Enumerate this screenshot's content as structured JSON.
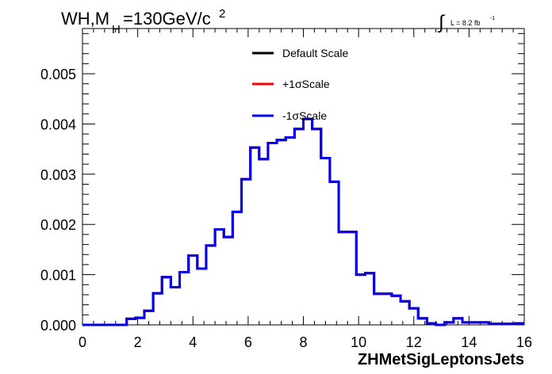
{
  "chart_data": {
    "type": "line",
    "drawstyle": "steps",
    "title_main": "WH,M",
    "title_sub": "H",
    "title_rest": "=130GeV/c",
    "title_sup": "2",
    "lumi_integral": "∫",
    "lumi_text": "L = 8.2 fb",
    "lumi_sup": "-1",
    "xlabel": "ZHMetSigLeptonsJets",
    "ylabel": "",
    "xlim": [
      0,
      16
    ],
    "ylim": [
      0,
      0.0059
    ],
    "xticks": [
      0,
      2,
      4,
      6,
      8,
      10,
      12,
      14,
      16
    ],
    "xtick_labels": [
      "0",
      "2",
      "4",
      "6",
      "8",
      "10",
      "12",
      "14",
      "16"
    ],
    "yticks": [
      0,
      0.001,
      0.002,
      0.003,
      0.004,
      0.005
    ],
    "ytick_labels": [
      "0.000",
      "0.001",
      "0.002",
      "0.003",
      "0.004",
      "0.005"
    ],
    "grid": false,
    "legend_position": "top-center",
    "bin_width": 0.32,
    "bin_edges_start": 0,
    "series": [
      {
        "name": "Default Scale",
        "color": "#000000",
        "values": [
          0,
          0,
          0,
          0,
          0,
          0.00012,
          0.00014,
          0.00028,
          0.00063,
          0.00095,
          0.00075,
          0.00105,
          0.00138,
          0.00112,
          0.00158,
          0.0019,
          0.00175,
          0.00225,
          0.0029,
          0.00353,
          0.0033,
          0.00362,
          0.00368,
          0.00373,
          0.0039,
          0.0041,
          0.0039,
          0.00332,
          0.00285,
          0.00185,
          0.00185,
          0.001,
          0.00103,
          0.00062,
          0.00062,
          0.00058,
          0.00047,
          0.00033,
          0.00013,
          3e-05,
          0,
          5e-05,
          0.00013,
          5e-05,
          5e-05,
          5e-05,
          2e-05,
          2e-05,
          2e-05,
          3e-05
        ]
      },
      {
        "name": "+1σScale",
        "color": "#ff0000",
        "values": [
          0,
          0,
          0,
          0,
          0,
          0.00012,
          0.00014,
          0.00028,
          0.00063,
          0.00095,
          0.00075,
          0.00105,
          0.00138,
          0.00112,
          0.00158,
          0.0019,
          0.00175,
          0.00225,
          0.0029,
          0.00353,
          0.0033,
          0.00362,
          0.00368,
          0.00373,
          0.0039,
          0.0041,
          0.0039,
          0.00332,
          0.00285,
          0.00185,
          0.00185,
          0.001,
          0.00103,
          0.00062,
          0.00062,
          0.00058,
          0.00047,
          0.00033,
          0.00013,
          3e-05,
          0,
          5e-05,
          0.00013,
          5e-05,
          5e-05,
          5e-05,
          2e-05,
          2e-05,
          2e-05,
          3e-05
        ]
      },
      {
        "name": "-1σScale",
        "color": "#0000ee",
        "values": [
          0,
          0,
          0,
          0,
          0,
          0.00012,
          0.00014,
          0.00028,
          0.00063,
          0.00095,
          0.00075,
          0.00105,
          0.00138,
          0.00112,
          0.00158,
          0.0019,
          0.00175,
          0.00225,
          0.0029,
          0.00353,
          0.0033,
          0.00362,
          0.00368,
          0.00373,
          0.0039,
          0.0041,
          0.0039,
          0.00332,
          0.00285,
          0.00185,
          0.00185,
          0.001,
          0.00103,
          0.00062,
          0.00062,
          0.00058,
          0.00047,
          0.00033,
          0.00013,
          3e-05,
          0,
          5e-05,
          0.00013,
          5e-05,
          5e-05,
          5e-05,
          2e-05,
          2e-05,
          2e-05,
          3e-05
        ]
      }
    ]
  }
}
